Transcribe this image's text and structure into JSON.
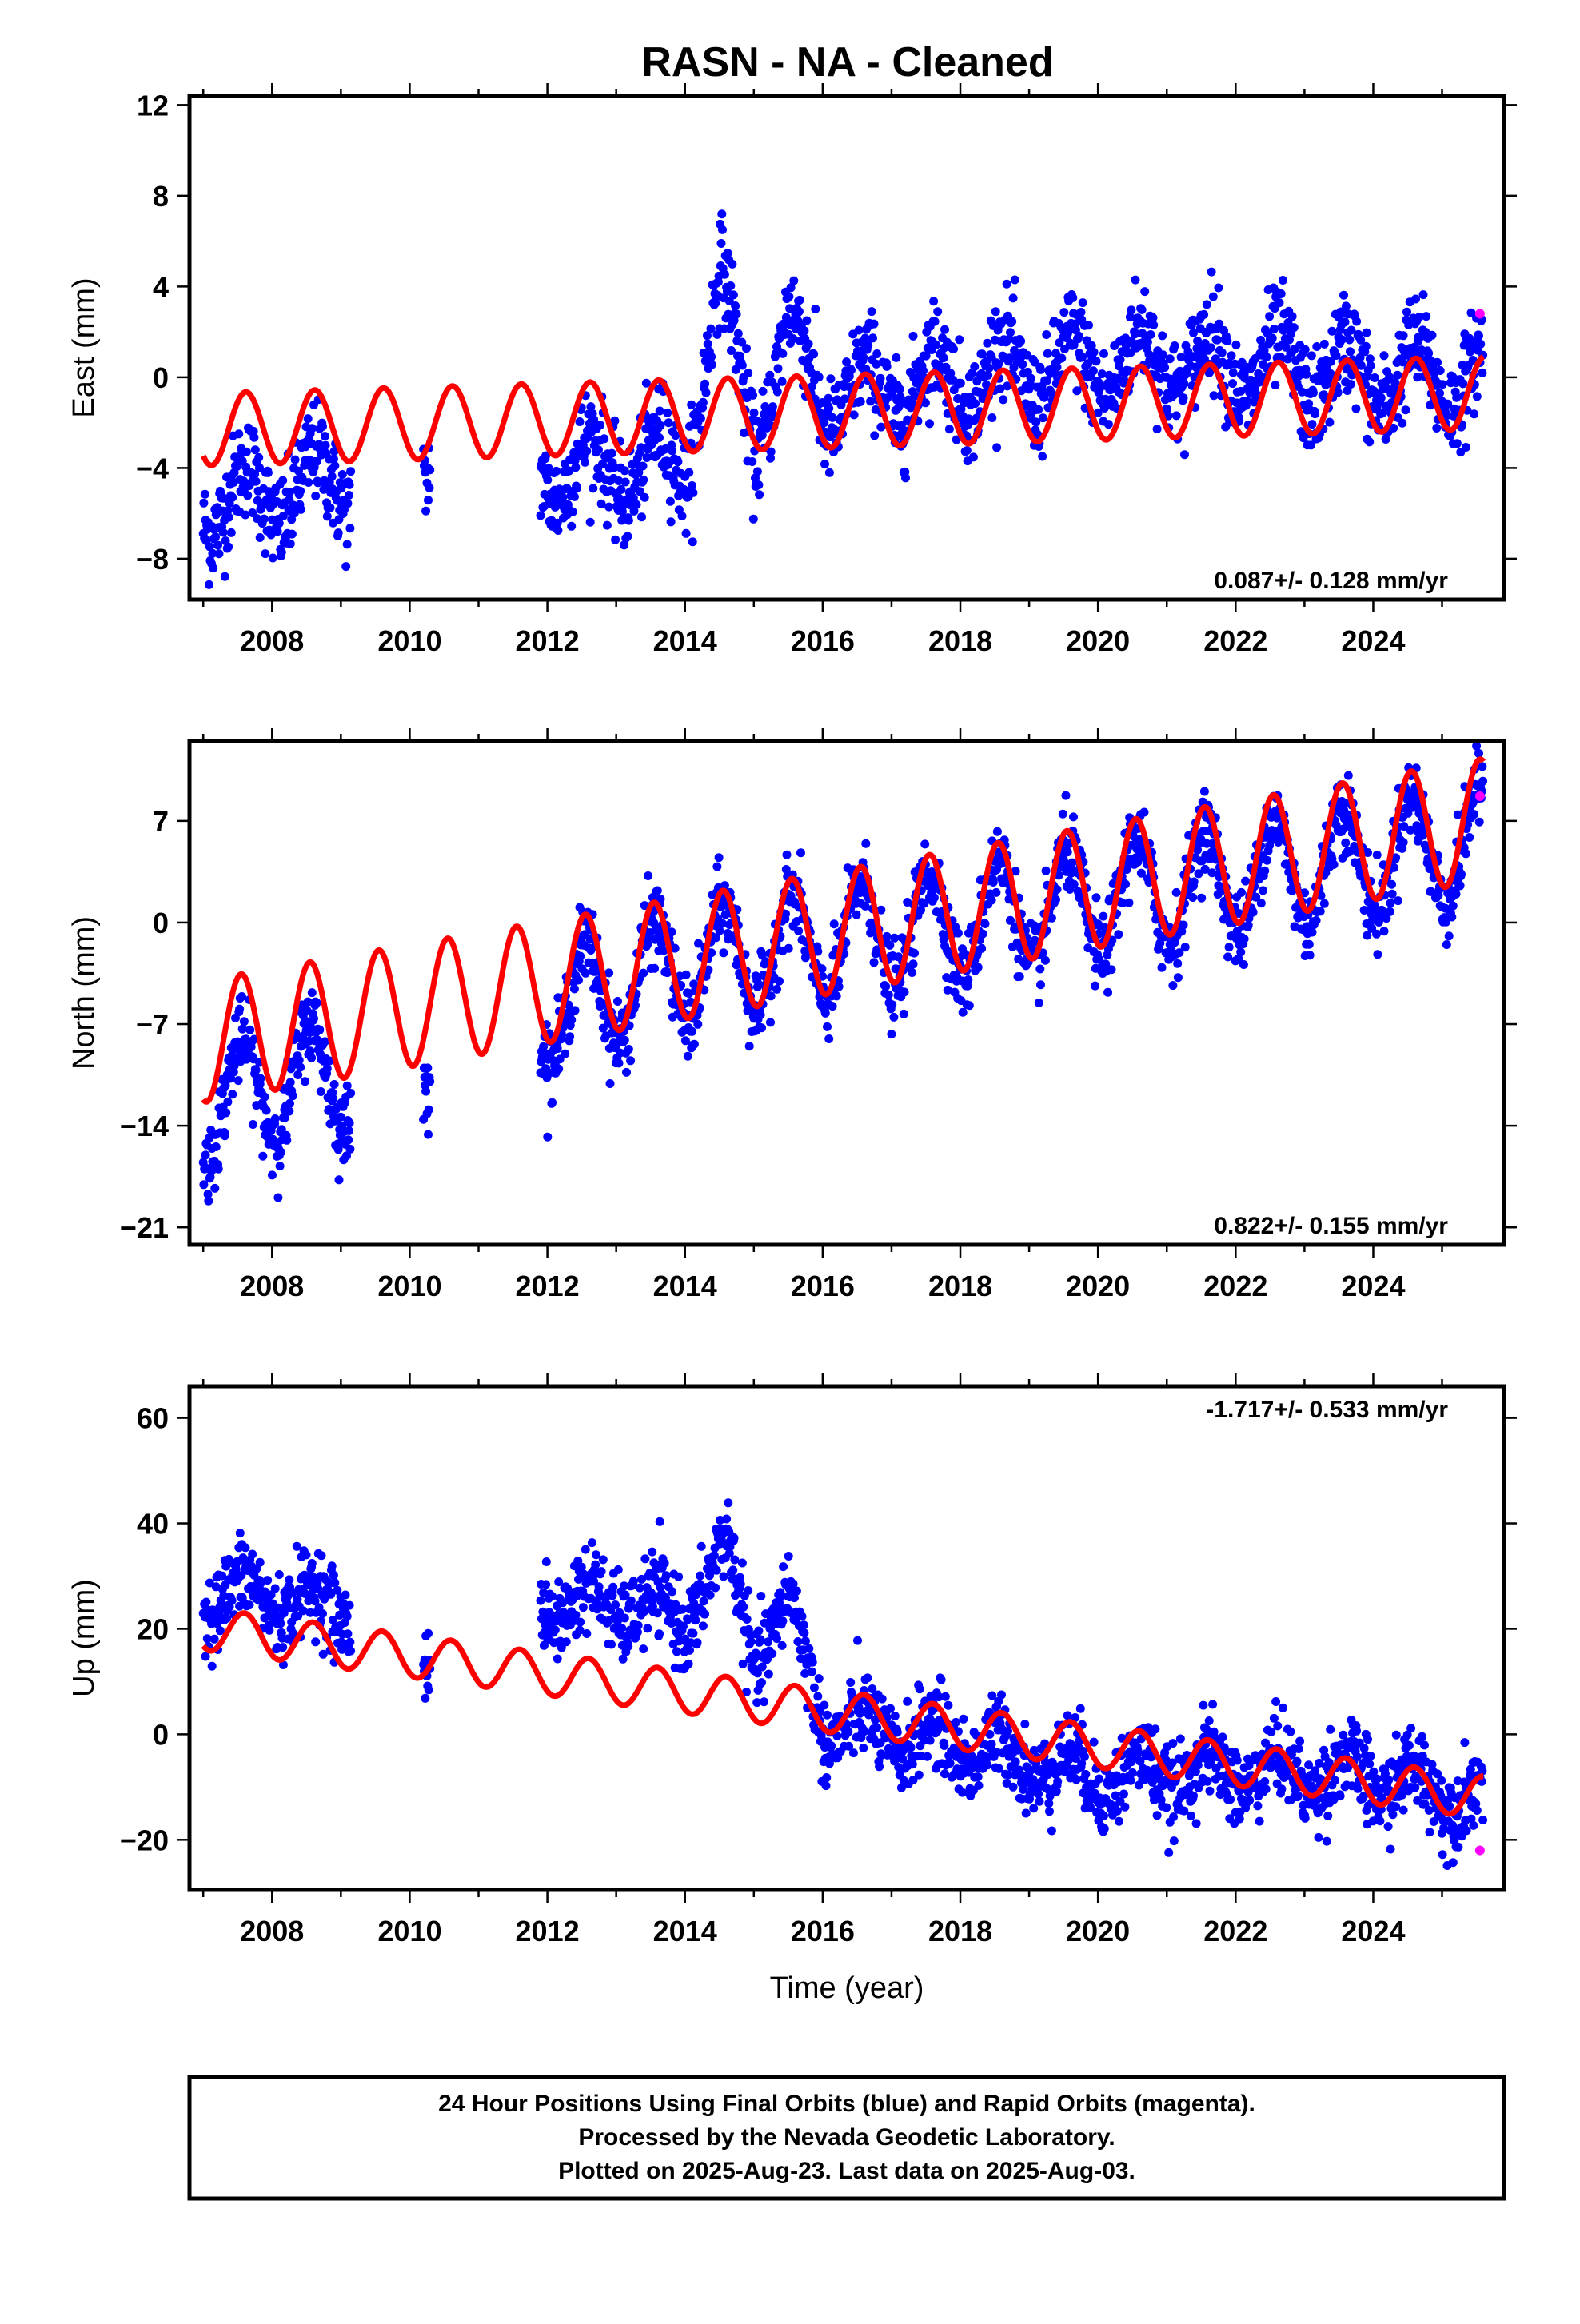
{
  "title": "RASN  - NA - Cleaned",
  "footer": {
    "line1": "24 Hour Positions Using Final Orbits (blue) and Rapid Orbits (magenta).",
    "line2": "Processed by the Nevada Geodetic Laboratory.",
    "line3": "Plotted on 2025-Aug-23. Last data on 2025-Aug-03."
  },
  "colors": {
    "final_orbits": "#0000ff",
    "rapid_orbits": "#ff00ff",
    "model": "#ff0000",
    "frame": "#000000"
  },
  "chart_data": [
    {
      "type": "scatter",
      "component": "east",
      "ylabel": "East (mm)",
      "xlabel": "",
      "rate_label": "0.087+/- 0.128 mm/yr",
      "xlim": [
        2006.8,
        2025.9
      ],
      "ylim": [
        -9.8,
        12.4
      ],
      "xticks": [
        2008,
        2010,
        2012,
        2014,
        2016,
        2018,
        2020,
        2022,
        2024
      ],
      "yticks": [
        -8,
        -4,
        0,
        4,
        8,
        12
      ],
      "grid": false,
      "data_ranges": [
        [
          2007.0,
          2009.15
        ],
        [
          2010.2,
          2010.3
        ],
        [
          2011.9,
          2025.6
        ]
      ],
      "approx_median": [
        [
          2007.0,
          -5.5
        ],
        [
          2008.0,
          -5.2
        ],
        [
          2009.0,
          -4.5
        ],
        [
          2010.25,
          -3.5
        ],
        [
          2012.0,
          -4.0
        ],
        [
          2013.0,
          -4.0
        ],
        [
          2014.0,
          -3.8
        ],
        [
          2014.5,
          4.0
        ],
        [
          2015.0,
          -2.5
        ],
        [
          2015.5,
          2.0
        ],
        [
          2016.0,
          -1.0
        ],
        [
          2017.0,
          -0.5
        ],
        [
          2018.0,
          0.0
        ],
        [
          2019.0,
          0.2
        ],
        [
          2020.0,
          0.5
        ],
        [
          2021.0,
          0.8
        ],
        [
          2022.0,
          0.5
        ],
        [
          2023.0,
          0.3
        ],
        [
          2024.0,
          0.0
        ],
        [
          2025.5,
          0.0
        ]
      ],
      "approx_scatter_halfwidth": 2.0,
      "model": {
        "offset_2007": -2.3,
        "rate": 0.087,
        "annual_amplitude": 1.6,
        "phase_peak_fraction": 0.62
      },
      "rapid_points": [
        [
          2025.55,
          2.8
        ]
      ]
    },
    {
      "type": "scatter",
      "component": "north",
      "ylabel": "North (mm)",
      "xlabel": "",
      "rate_label": "0.822+/- 0.155 mm/yr",
      "xlim": [
        2006.8,
        2025.9
      ],
      "ylim": [
        -22.2,
        12.5
      ],
      "xticks": [
        2008,
        2010,
        2012,
        2014,
        2016,
        2018,
        2020,
        2022,
        2024
      ],
      "yticks": [
        -21,
        -14,
        -7,
        0,
        7
      ],
      "grid": false,
      "data_ranges": [
        [
          2007.0,
          2009.15
        ],
        [
          2010.2,
          2010.3
        ],
        [
          2011.9,
          2025.6
        ]
      ],
      "approx_median": [
        [
          2007.0,
          -13.0
        ],
        [
          2008.0,
          -11.0
        ],
        [
          2009.0,
          -10.5
        ],
        [
          2010.25,
          -10.0
        ],
        [
          2012.0,
          -6.0
        ],
        [
          2014.0,
          -3.0
        ],
        [
          2016.0,
          -1.5
        ],
        [
          2018.0,
          0.0
        ],
        [
          2020.0,
          1.5
        ],
        [
          2022.0,
          3.0
        ],
        [
          2024.0,
          4.5
        ],
        [
          2025.5,
          5.5
        ]
      ],
      "approx_scatter_halfwidth": 2.5,
      "model": {
        "offset_2007": -8.2,
        "rate": 0.822,
        "annual_amplitude": 4.2,
        "phase_peak_fraction": 0.55
      },
      "rapid_points": [
        [
          2025.55,
          8.7
        ]
      ]
    },
    {
      "type": "scatter",
      "component": "up",
      "ylabel": "Up (mm)",
      "xlabel": "Time (year)",
      "rate_label": "-1.717+/- 0.533 mm/yr",
      "xlim": [
        2006.8,
        2025.9
      ],
      "ylim": [
        -29.5,
        66
      ],
      "xticks": [
        2008,
        2010,
        2012,
        2014,
        2016,
        2018,
        2020,
        2022,
        2024
      ],
      "yticks": [
        -20,
        0,
        20,
        40,
        60
      ],
      "grid": false,
      "data_ranges": [
        [
          2007.0,
          2009.15
        ],
        [
          2010.2,
          2010.3
        ],
        [
          2011.9,
          2025.6
        ]
      ],
      "approx_median": [
        [
          2007.0,
          27.0
        ],
        [
          2008.0,
          26.0
        ],
        [
          2009.0,
          24.0
        ],
        [
          2010.25,
          16.0
        ],
        [
          2012.0,
          25.0
        ],
        [
          2013.0,
          25.0
        ],
        [
          2014.0,
          22.0
        ],
        [
          2014.6,
          35.0
        ],
        [
          2015.0,
          15.0
        ],
        [
          2015.5,
          25.0
        ],
        [
          2016.0,
          2.0
        ],
        [
          2018.0,
          -2.0
        ],
        [
          2020.0,
          -8.0
        ],
        [
          2022.0,
          -7.0
        ],
        [
          2024.0,
          -8.0
        ],
        [
          2025.5,
          -12.0
        ]
      ],
      "approx_scatter_halfwidth": 7.0,
      "model": {
        "offset_2007": 20.0,
        "rate": -1.717,
        "annual_amplitude": 4.0,
        "phase_peak_fraction": 0.6
      },
      "rapid_points": [
        [
          2025.55,
          -22.0
        ]
      ]
    }
  ]
}
